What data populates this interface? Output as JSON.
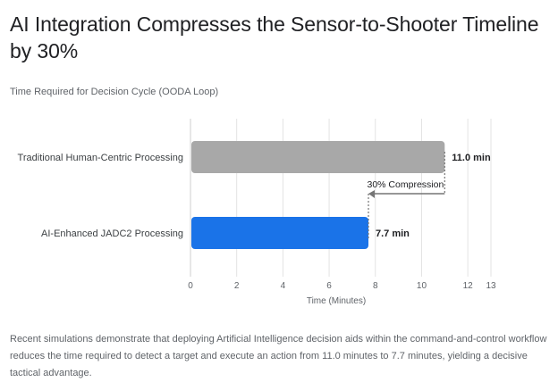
{
  "chart_data": {
    "type": "bar",
    "orientation": "horizontal",
    "title": "AI Integration Compresses the Sensor-to-Shooter Timeline by 30%",
    "subtitle": "Time Required for Decision Cycle (OODA Loop)",
    "categories": [
      "Traditional Human-Centric Processing",
      "AI-Enhanced JADC2 Processing"
    ],
    "values": [
      11.0,
      7.7
    ],
    "value_labels": [
      "11.0 min",
      "7.7 min"
    ],
    "colors": [
      "#a8a8a8",
      "#1a73e8"
    ],
    "xlabel": "Time (Minutes)",
    "ylabel": "",
    "xlim": [
      0,
      13
    ],
    "xticks": [
      0,
      2,
      4,
      6,
      8,
      10,
      12,
      13
    ],
    "grid": true,
    "annotation": {
      "text": "30% Compression",
      "from": 11.0,
      "to": 7.7,
      "color": "#757575"
    }
  },
  "caption": "Recent simulations demonstrate that deploying Artificial Intelligence decision aids within the command-and-control workflow reduces the time required to detect a target and execute an action from 11.0 minutes to 7.7 minutes, yielding a decisive tactical advantage."
}
